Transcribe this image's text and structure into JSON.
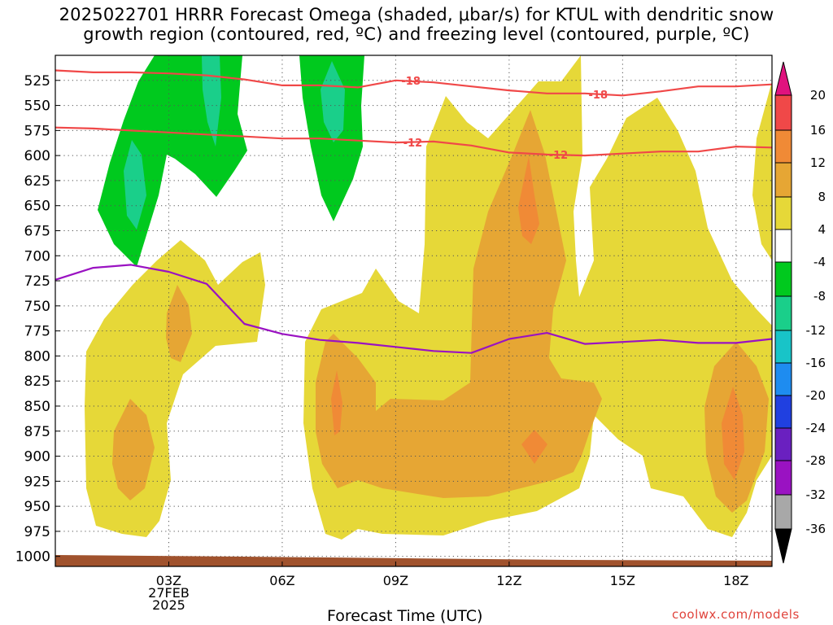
{
  "header": {
    "title": "2025022701 HRRR Forecast Omega (shaded, μbar/s) for KTUL with dendritic snow\ngrowth region (contoured, red, ºC) and freezing level (contoured, purple, ºC)"
  },
  "footer": {
    "credit": "coolwx.com/models"
  },
  "chart_data": {
    "type": "heatmap",
    "xlabel": "Forecast Time (UTC)",
    "x_tick_labels": [
      "03Z\n27FEB\n2025",
      "06Z",
      "09Z",
      "12Z",
      "15Z",
      "18Z"
    ],
    "x_ticks_hours": [
      3,
      6,
      9,
      12,
      15,
      18
    ],
    "xlim_hours": [
      0,
      18.95
    ],
    "y_tick_labels": [
      "525",
      "550",
      "575",
      "600",
      "625",
      "650",
      "675",
      "700",
      "725",
      "750",
      "775",
      "800",
      "825",
      "850",
      "875",
      "900",
      "925",
      "950",
      "975",
      "1000"
    ],
    "ylim_hpa": [
      500,
      1010
    ],
    "grid": true,
    "colorbar": {
      "tick_labels": [
        "20",
        "16",
        "12",
        "8",
        "4",
        "-4",
        "-8",
        "-12",
        "-16",
        "-20",
        "-24",
        "-28",
        "-32",
        "-36"
      ],
      "colors": {
        "gt20": "#e0127e",
        "16_20": "#f04848",
        "12_16": "#f08a36",
        "8_12": "#e6a634",
        "4_8": "#e6d838",
        "m4_4": "#ffffff",
        "m8_m4": "#00c91e",
        "m12_m8": "#1acf8a",
        "m16_m12": "#18c4c8",
        "m20_m16": "#1e8cf0",
        "m24_m20": "#2040e0",
        "m28_m24": "#6a20c0",
        "m32_m28": "#9a12c2",
        "m36_m32": "#a8a8a8",
        "lt36": "#000000"
      }
    },
    "contour_labels": {
      "minus18_a": "-18",
      "minus18_b": "-18",
      "minus12_a": "-12",
      "minus12_b": "-12"
    },
    "series": [
      {
        "label": "-18",
        "color": "#f04848",
        "hours": [
          0,
          1,
          2,
          3,
          4,
          5,
          6,
          7,
          8,
          9,
          10,
          11,
          12,
          13,
          14,
          15,
          16,
          17,
          18,
          18.95
        ],
        "hpa": [
          515,
          517,
          517,
          518,
          520,
          524,
          530,
          530,
          532,
          525,
          527,
          531,
          535,
          538,
          538,
          540,
          536,
          531,
          531,
          529
        ]
      },
      {
        "label": "-12",
        "color": "#f04848",
        "hours": [
          0,
          1,
          2,
          3,
          4,
          5,
          6,
          7,
          8,
          9,
          10,
          11,
          12,
          13,
          14,
          15,
          16,
          17,
          18,
          18.95
        ],
        "hpa": [
          572,
          573,
          575,
          577,
          579,
          581,
          583,
          583,
          585,
          587,
          586,
          590,
          597,
          599,
          600,
          598,
          596,
          596,
          591,
          592
        ]
      },
      {
        "label": "freezing level",
        "color": "#9a12c2",
        "hours": [
          0,
          1,
          2,
          3,
          4,
          5,
          6,
          7,
          8,
          9,
          10,
          11,
          12,
          13,
          14,
          15,
          16,
          17,
          18,
          18.95
        ],
        "hpa": [
          724,
          712,
          709,
          716,
          728,
          768,
          778,
          784,
          787,
          791,
          795,
          797,
          783,
          777,
          788,
          786,
          784,
          787,
          787,
          783
        ]
      }
    ]
  }
}
